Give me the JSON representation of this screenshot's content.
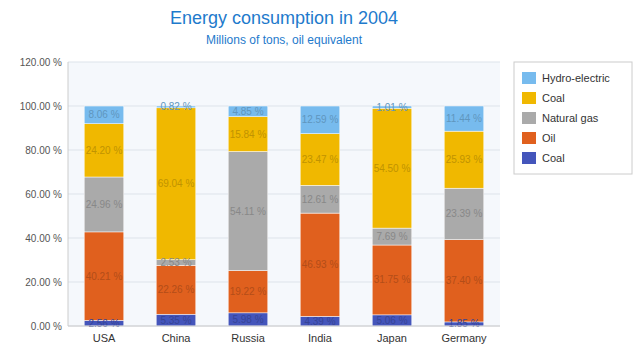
{
  "chart_data": {
    "type": "bar",
    "stacked": true,
    "title": "Energy consumption in 2004",
    "subtitle": "Millions of tons, oil equivalent",
    "categories": [
      "USA",
      "China",
      "Russia",
      "India",
      "Japan",
      "Germany"
    ],
    "series": [
      {
        "name": "Coal",
        "color": "#4455bb",
        "values": [
          2.56,
          5.35,
          5.98,
          4.39,
          5.06,
          1.85
        ],
        "value_labels": [
          "2.56 %",
          "5.35 %",
          "5.98 %",
          "4.39 %",
          "5.06 %",
          "1.85 %"
        ]
      },
      {
        "name": "Oil",
        "color": "#e0601e",
        "values": [
          40.21,
          22.26,
          19.22,
          46.93,
          31.75,
          37.4
        ],
        "value_labels": [
          "40.21 %",
          "22.26 %",
          "19.22 %",
          "46.93 %",
          "31.75 %",
          "37.40 %"
        ]
      },
      {
        "name": "Natural gas",
        "color": "#aaaaaa",
        "values": [
          24.96,
          2.53,
          54.11,
          12.61,
          7.69,
          23.39
        ],
        "value_labels": [
          "24.96 %",
          "2.53 %",
          "54.11 %",
          "12.61 %",
          "7.69 %",
          "23.39 %"
        ]
      },
      {
        "name": "Coal",
        "color": "#f0b800",
        "values": [
          24.2,
          69.04,
          15.84,
          23.47,
          54.5,
          25.93
        ],
        "value_labels": [
          "24.20 %",
          "69.04 %",
          "15.84 %",
          "23.47 %",
          "54.50 %",
          "25.93 %"
        ]
      },
      {
        "name": "Hydro-electric",
        "color": "#77bbee",
        "values": [
          8.06,
          0.82,
          4.85,
          12.59,
          1.01,
          11.44
        ],
        "value_labels": [
          "8.06 %",
          "0.82 %",
          "4.85 %",
          "12.59 %",
          "1.01 %",
          "11.44 %"
        ]
      }
    ],
    "ylim": [
      0,
      120
    ],
    "yticks": [
      {
        "value": 0,
        "label": "0.00 %"
      },
      {
        "value": 20,
        "label": "20.00 %"
      },
      {
        "value": 40,
        "label": "40.00 %"
      },
      {
        "value": 60,
        "label": "60.00 %"
      },
      {
        "value": 80,
        "label": "80.00 %"
      },
      {
        "value": 100,
        "label": "100.00 %"
      },
      {
        "value": 120,
        "label": "120.00 %"
      }
    ],
    "grid": true,
    "data_labels": true,
    "legend": "right"
  }
}
